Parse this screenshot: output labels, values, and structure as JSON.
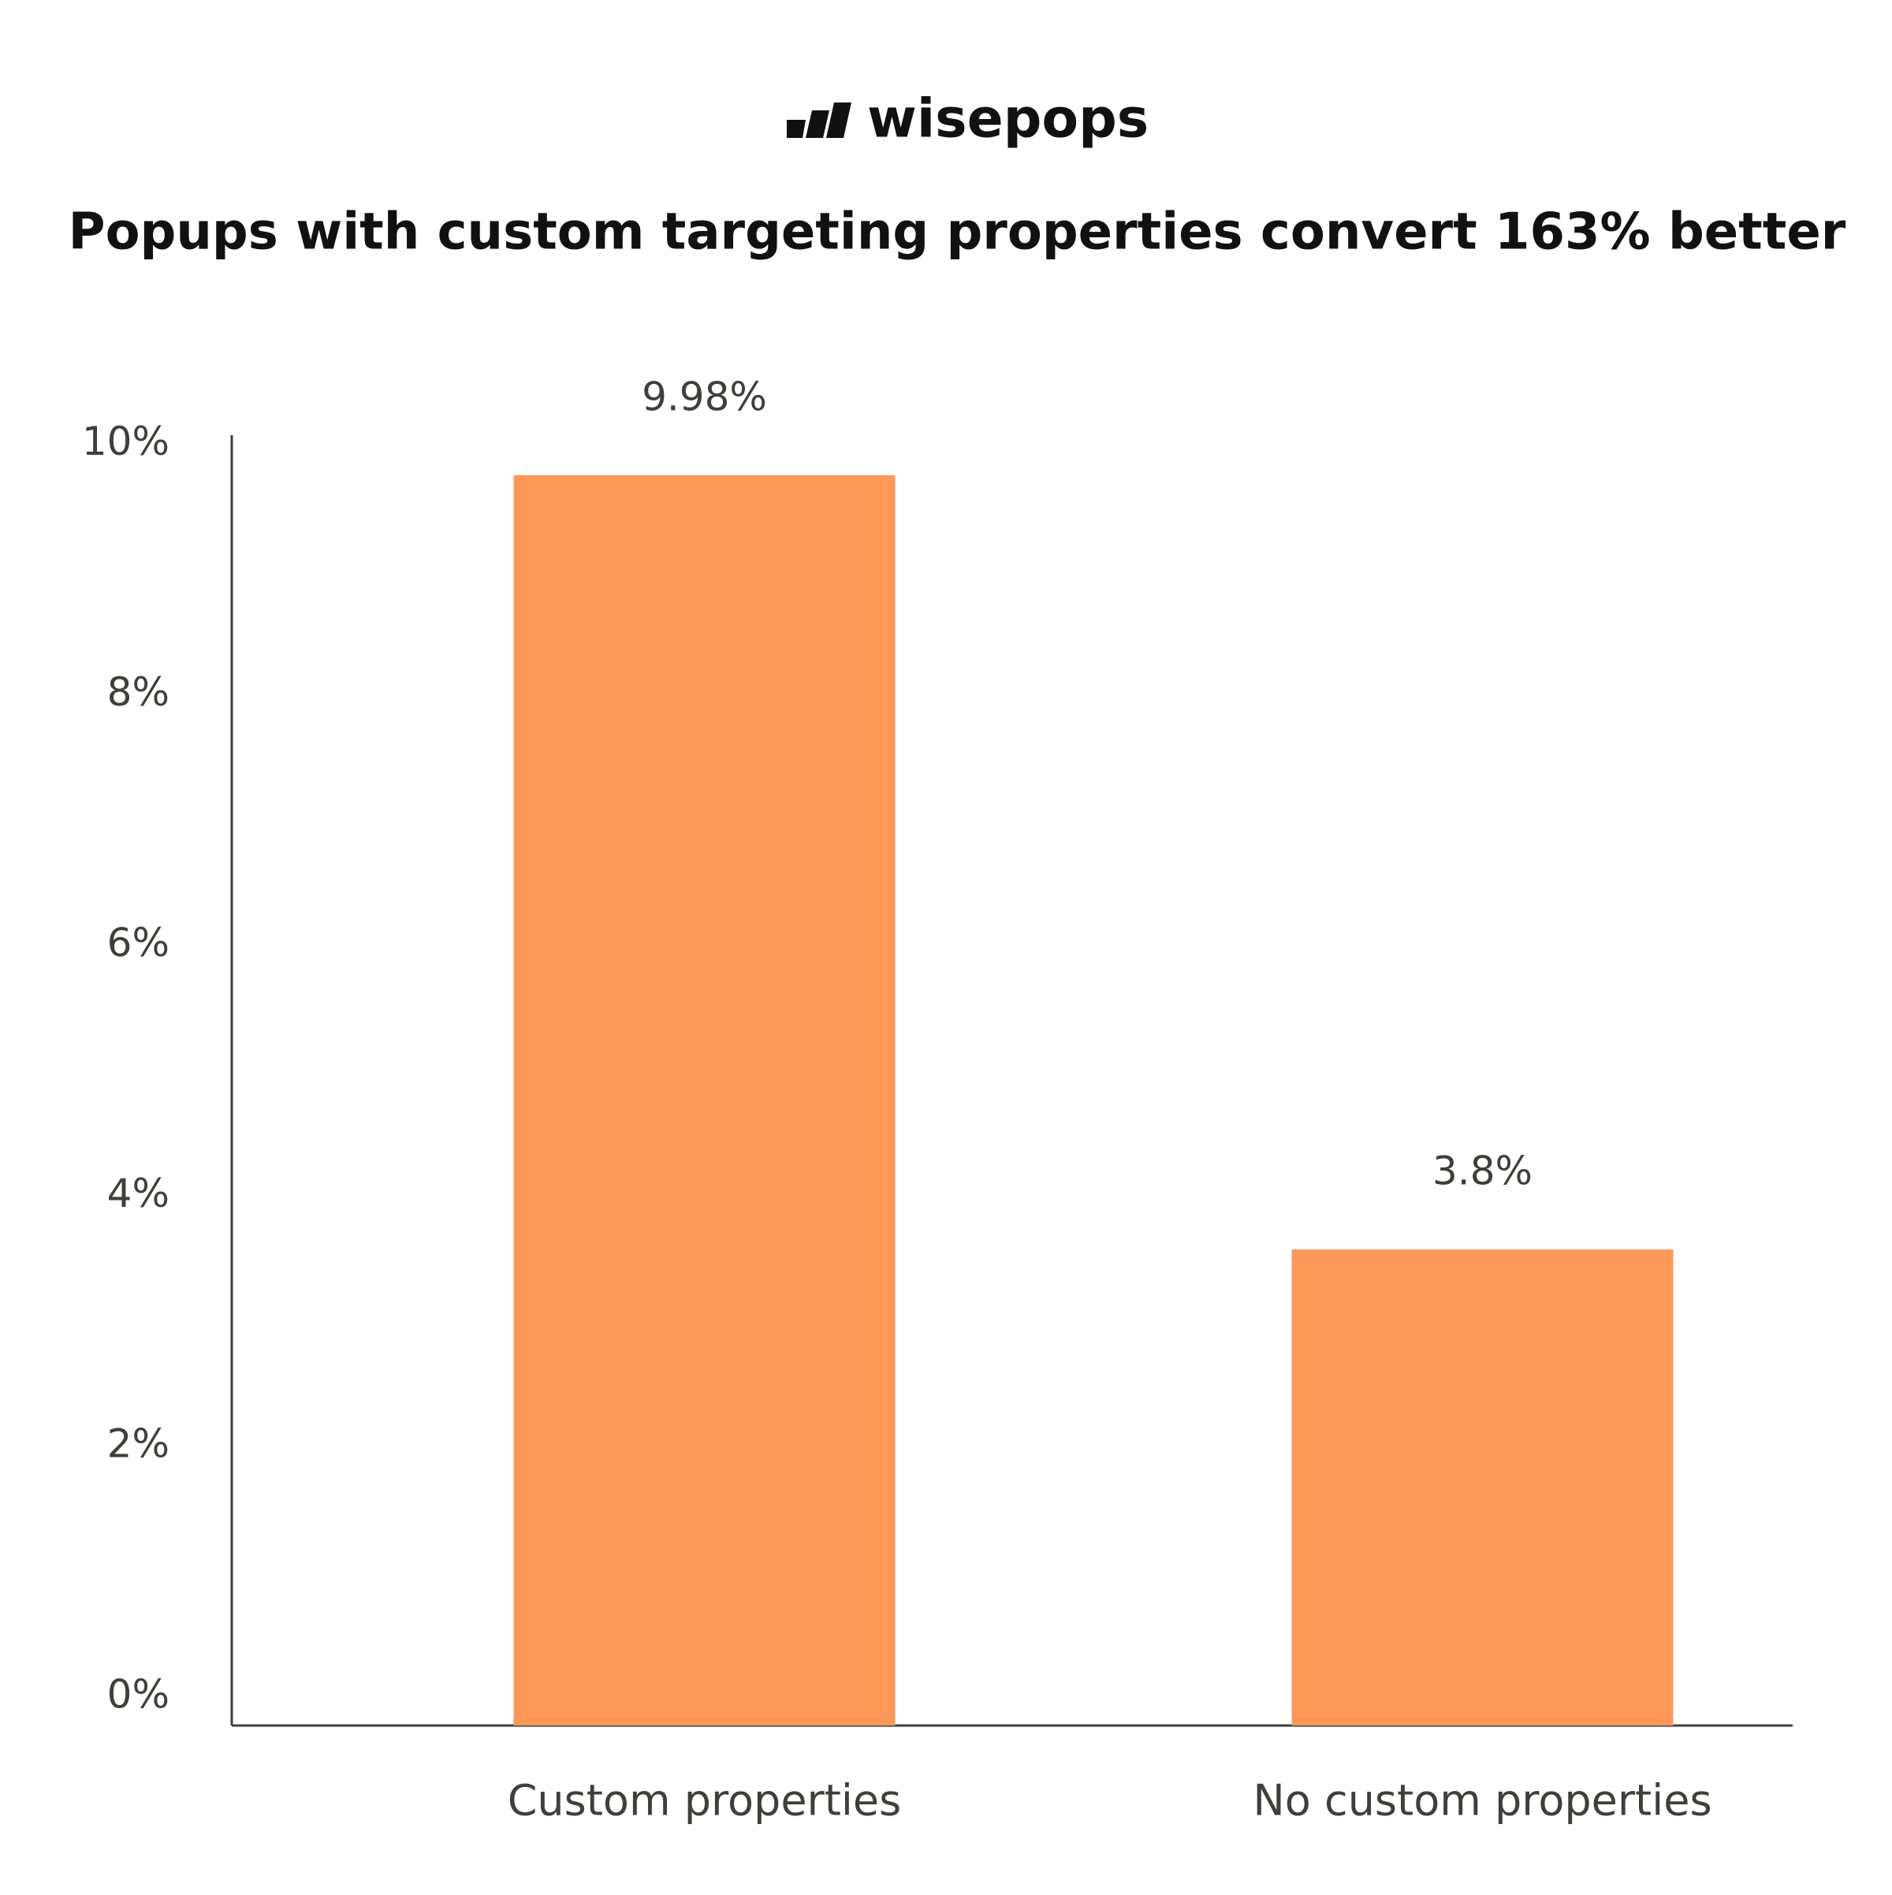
{
  "chart_data": {
    "type": "bar",
    "logo": "wisepops",
    "title": "Popups with custom targeting properties convert 163% better",
    "categories": [
      "Custom properties",
      "No custom properties"
    ],
    "values": [
      9.98,
      3.8
    ],
    "value_labels": [
      "9.98%",
      "3.8%"
    ],
    "color": "#fe9859",
    "ylim": [
      0,
      10.3
    ],
    "yticks": [
      {
        "value": 0,
        "label": "0%"
      },
      {
        "value": 2,
        "label": "2%"
      },
      {
        "value": 4,
        "label": "4%"
      },
      {
        "value": 6,
        "label": "6%"
      },
      {
        "value": 8,
        "label": "8%"
      },
      {
        "value": 10,
        "label": "10%"
      }
    ],
    "grid": false
  }
}
